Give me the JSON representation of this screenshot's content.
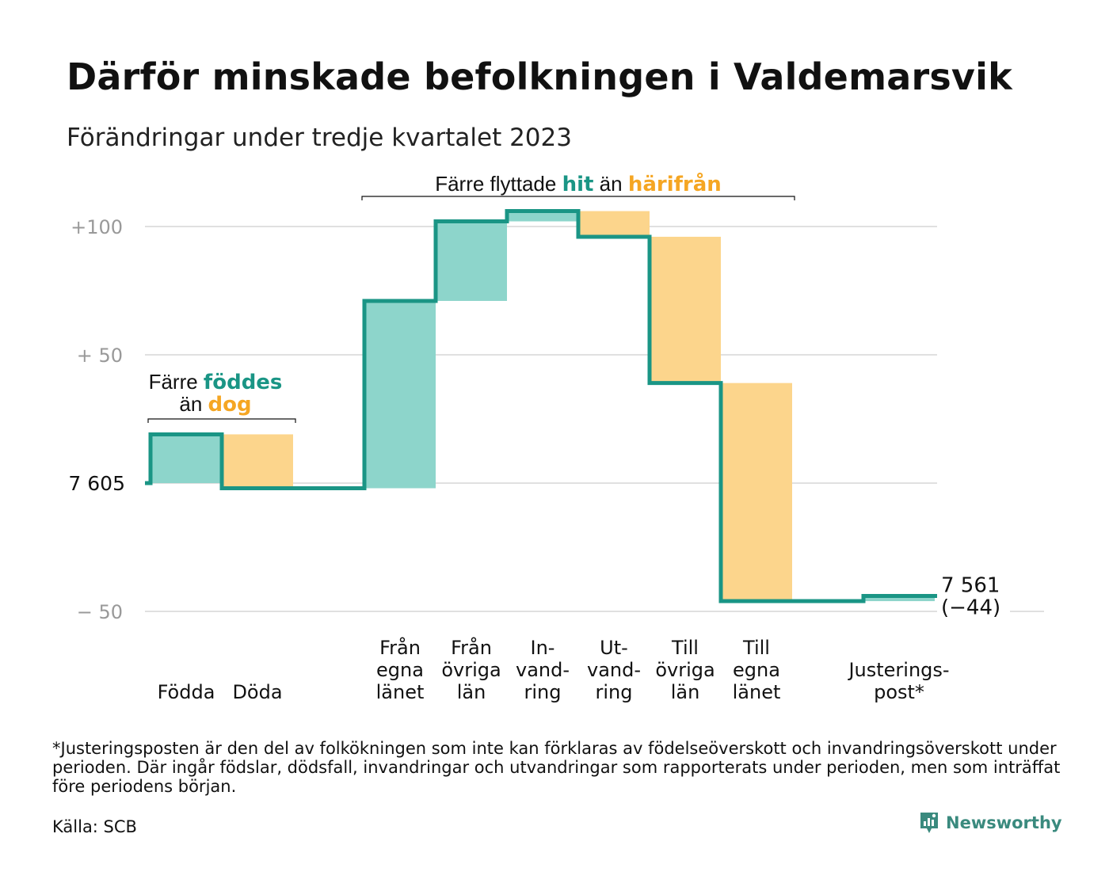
{
  "title": "Därför minskade befolkningen i Valdemarsvik",
  "subtitle": "Förändringar under tredje kvartalet 2023",
  "footnote": "*Justeringsposten är den del av folkökningen som inte kan förklaras av födelseöverskott och invandringsöverskott under perioden. Där ingår födslar, dödsfall, invandringar och utvandringar som rapporterats under perioden, men som inträffat före periodens början.",
  "source": "Källa: SCB",
  "brand": "Newsworthy",
  "colors": {
    "increase": "#8dd5cb",
    "decrease": "#fcd58c",
    "line": "#1a9585",
    "hit": "#1a9585",
    "harifran": "#f5a623",
    "grid": "#e0e0e0",
    "axis_text": "#999999"
  },
  "chart_data": {
    "type": "waterfall",
    "start": {
      "value": 7605,
      "label": "7  605"
    },
    "end": {
      "value": 7561,
      "label_value": "7 561",
      "label_change": "(−44)"
    },
    "y_ticks": [
      {
        "value": 100,
        "label": "+100"
      },
      {
        "value": 50,
        "label": "+  50"
      },
      {
        "value": -50,
        "label": "−  50"
      }
    ],
    "ylim": [
      -55,
      110
    ],
    "steps": [
      {
        "category": "Födda",
        "change": 19,
        "kind": "increase"
      },
      {
        "category": "Döda",
        "change": -21,
        "kind": "decrease"
      },
      {
        "category": "",
        "change": 0,
        "kind": "gap"
      },
      {
        "category": "Från egna länet",
        "change": 73,
        "kind": "increase"
      },
      {
        "category": "Från övriga län",
        "change": 31,
        "kind": "increase"
      },
      {
        "category": "In-vand-ring",
        "change": 4,
        "kind": "increase"
      },
      {
        "category": "Ut-vand-ring",
        "change": -10,
        "kind": "decrease"
      },
      {
        "category": "Till övriga län",
        "change": -57,
        "kind": "decrease"
      },
      {
        "category": "Till egna länet",
        "change": -85,
        "kind": "decrease"
      },
      {
        "category": "",
        "change": 0,
        "kind": "gap"
      },
      {
        "category": "Justerings-post*",
        "change": 2,
        "kind": "increase"
      }
    ],
    "category_labels": [
      {
        "lines": [
          "Födda"
        ],
        "step": 0
      },
      {
        "lines": [
          "Döda"
        ],
        "step": 1
      },
      {
        "lines": [
          "Från",
          "egna",
          "länet"
        ],
        "step": 3
      },
      {
        "lines": [
          "Från",
          "övriga",
          "län"
        ],
        "step": 4
      },
      {
        "lines": [
          "In-",
          "vand-",
          "ring"
        ],
        "step": 5
      },
      {
        "lines": [
          "Ut-",
          "vand-",
          "ring"
        ],
        "step": 6
      },
      {
        "lines": [
          "Till",
          "övriga",
          "län"
        ],
        "step": 7
      },
      {
        "lines": [
          "Till",
          "egna",
          "länet"
        ],
        "step": 8
      },
      {
        "lines": [
          "Justerings-",
          "post*"
        ],
        "step": 10
      }
    ],
    "annotations": [
      {
        "id": "births",
        "parts": [
          {
            "text": "Färre ",
            "style": "plain"
          },
          {
            "text": "föddes",
            "style": "hit"
          }
        ],
        "parts2": [
          {
            "text": "än ",
            "style": "plain"
          },
          {
            "text": "dog",
            "style": "harifran"
          }
        ],
        "from_step": 0,
        "to_step": 1
      },
      {
        "id": "moves",
        "parts": [
          {
            "text": "Färre flyttade ",
            "style": "plain"
          },
          {
            "text": "hit",
            "style": "hit"
          },
          {
            "text": " än ",
            "style": "plain"
          },
          {
            "text": "härifrån",
            "style": "harifran"
          }
        ],
        "from_step": 3,
        "to_step": 8
      }
    ]
  }
}
